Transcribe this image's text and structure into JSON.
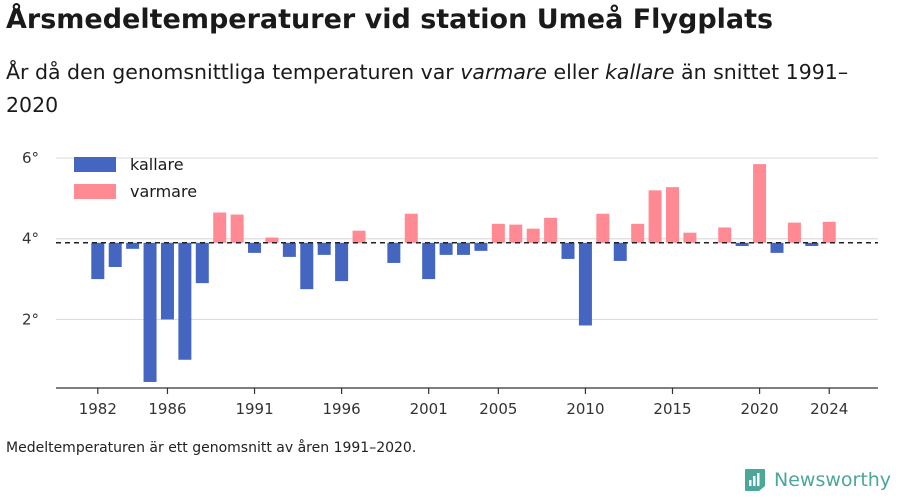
{
  "title": "Årsmedeltemperaturer vid station Umeå Flygplats",
  "subtitle": {
    "part1": "År då den genomsnittliga temperaturen var ",
    "warmer_em": "varmare",
    "part2": " eller ",
    "colder_em": "kallare",
    "part3": " än snittet 1991–2020"
  },
  "footnote": "Medeltemperaturen är ett genomsnitt av åren 1991–2020.",
  "brand": "Newsworthy",
  "colors": {
    "colder": "#4466c0",
    "warmer": "#ff8a94",
    "grid": "#dddddd",
    "baseline": "#222222",
    "brand": "#4aa79a"
  },
  "chart_data": {
    "type": "bar",
    "baseline": 3.9,
    "ylim": [
      0.3,
      6.2
    ],
    "yticks": [
      2,
      4,
      6
    ],
    "ytick_labels": [
      "2°",
      "4°",
      "6°"
    ],
    "xticks": [
      1982,
      1986,
      1991,
      1996,
      2001,
      2005,
      2010,
      2015,
      2020,
      2024
    ],
    "xlim": [
      1979.6,
      2026.8
    ],
    "legend": {
      "placement": "top-left",
      "entries": [
        {
          "label": "kallare",
          "color_key": "colder"
        },
        {
          "label": "varmare",
          "color_key": "warmer"
        }
      ]
    },
    "years": [
      1982,
      1983,
      1984,
      1985,
      1986,
      1987,
      1988,
      1989,
      1990,
      1991,
      1992,
      1993,
      1994,
      1995,
      1996,
      1997,
      1999,
      2000,
      2001,
      2002,
      2003,
      2004,
      2005,
      2006,
      2007,
      2008,
      2009,
      2010,
      2011,
      2012,
      2013,
      2014,
      2015,
      2016,
      2018,
      2019,
      2020,
      2021,
      2022,
      2023,
      2024
    ],
    "values": [
      3.0,
      3.3,
      3.75,
      0.45,
      2.0,
      1.0,
      2.9,
      4.65,
      4.6,
      3.65,
      4.03,
      3.55,
      2.75,
      3.6,
      2.95,
      4.2,
      3.4,
      4.62,
      3.0,
      3.6,
      3.6,
      3.7,
      4.37,
      4.35,
      4.25,
      4.52,
      3.5,
      1.85,
      4.62,
      3.45,
      4.37,
      5.2,
      5.28,
      4.15,
      4.28,
      3.82,
      5.85,
      3.65,
      4.4,
      3.82,
      4.42
    ]
  }
}
